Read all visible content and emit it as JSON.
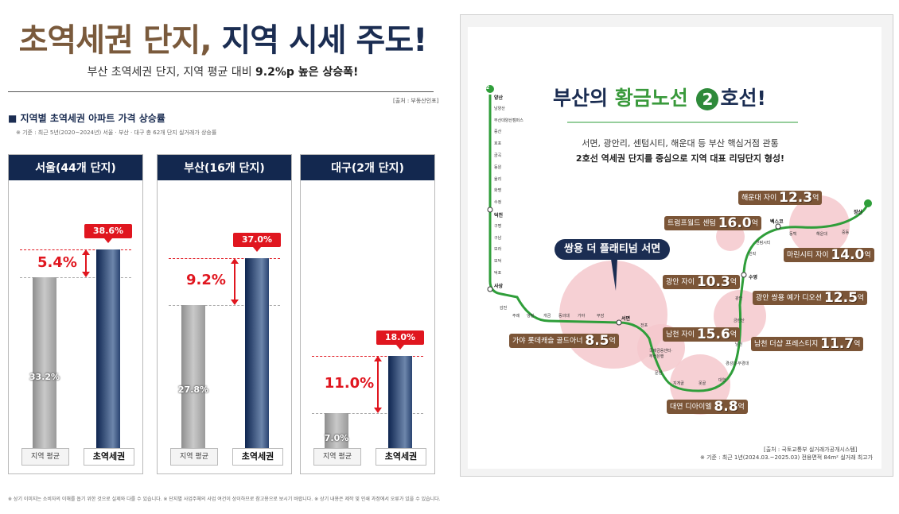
{
  "header": {
    "title_part1": "초역세권 단지,",
    "title_part2": "지역 시세 주도!",
    "subtitle_normal": "부산 초역세권 단지, 지역 평균 대비",
    "subtitle_bold": "9.2%p 높은 상승폭!",
    "source": "[출처 : 부동산인포]"
  },
  "chart_section": {
    "heading": "■ 지역별 초역세권 아파트 가격 상승률",
    "criteria": "※ 기준 : 최근 5년(2020~2024년) 서울 · 부산 · 대구 총 62개 단지 실거래가 상승률"
  },
  "chart_data": [
    {
      "type": "bar",
      "title": "서울(44개 단지)",
      "categories": [
        "지역 평균",
        "초역세권"
      ],
      "values": [
        33.2,
        38.6
      ],
      "value_labels": [
        "33.2%",
        "38.6%"
      ],
      "difference_label": "5.4%"
    },
    {
      "type": "bar",
      "title": "부산(16개 단지)",
      "categories": [
        "지역 평균",
        "초역세권"
      ],
      "values": [
        27.8,
        37.0
      ],
      "value_labels": [
        "27.8%",
        "37.0%"
      ],
      "difference_label": "9.2%"
    },
    {
      "type": "bar",
      "title": "대구(2개 단지)",
      "categories": [
        "지역 평균",
        "초역세권"
      ],
      "values": [
        7.0,
        18.0
      ],
      "value_labels": [
        "7.0%",
        "18.0%"
      ],
      "difference_label": "11.0%"
    }
  ],
  "colors": {
    "navy": "#13284f",
    "brown": "#7a5a3c",
    "red": "#e0161f",
    "line_green": "#2f9e3a",
    "price_tag_brown": "#7b5537"
  },
  "footer_note": "※ 상기 이미지는 소비자의 이해를 돕기 위한 것으로 실제와 다를 수 있습니다. ※ 단지별 사업주체의 사업 여건이 상이하므로 참고용으로 보시기 바랍니다. ※ 상기 내용은 제작 및 인쇄 과정에서 오류가 있을 수 있습니다.",
  "map": {
    "title_part1": "부산의",
    "title_part2": "황금노선",
    "title_badge": "2",
    "title_part3": "호선!",
    "desc_line1": "서면, 광안리, 센텀시티, 해운대 등 부산 핵심거점 관통",
    "desc_line2_bold": "2호선 역세권 단지를 중심으로",
    "desc_line2_rest": "지역 대표 리딩단지 형성!",
    "highlight": "쌍용 더 플래티넘 서면",
    "line_badge": "2",
    "stations_left": [
      "양산",
      "남양산",
      "부산대양산캠퍼스",
      "증산",
      "호포",
      "금곡",
      "동원",
      "율리",
      "화명",
      "수정",
      "덕천",
      "구명",
      "구남",
      "모라",
      "모덕",
      "덕포",
      "사상"
    ],
    "stations_bottom": [
      "감전",
      "주례",
      "냉정",
      "개금",
      "동의대",
      "가야",
      "부암",
      "서면",
      "전포",
      "국제금융센터·부산은행",
      "문현",
      "지게골",
      "못골",
      "대연",
      "경성대·부경대",
      "남천",
      "금련산",
      "광안",
      "수영",
      "민락",
      "센텀시티",
      "벡스코",
      "동백",
      "해운대",
      "중동",
      "장산"
    ],
    "prices": [
      {
        "name": "해운대 자이",
        "value": "12.3",
        "unit": "억"
      },
      {
        "name": "트럼프월드 센텀",
        "value": "16.0",
        "unit": "억"
      },
      {
        "name": "마린시티 자이",
        "value": "14.0",
        "unit": "억"
      },
      {
        "name": "광안 자이",
        "value": "10.3",
        "unit": "억"
      },
      {
        "name": "광안 쌍용 예가 디오션",
        "value": "12.5",
        "unit": "억"
      },
      {
        "name": "남천 자이",
        "value": "15.6",
        "unit": "억"
      },
      {
        "name": "가야 롯데캐슬 골드아너",
        "value": "8.5",
        "unit": "억"
      },
      {
        "name": "남천 더샵 프레스티지",
        "value": "11.7",
        "unit": "억"
      },
      {
        "name": "대연 디아이엘",
        "value": "8.8",
        "unit": "억"
      }
    ],
    "source1": "[출처 : 국토교통부 실거래가공개시스템]",
    "source2": "※ 기준 : 최근 1년(2024.03.~2025.03) 전용면적 84m² 실거래 최고가"
  }
}
